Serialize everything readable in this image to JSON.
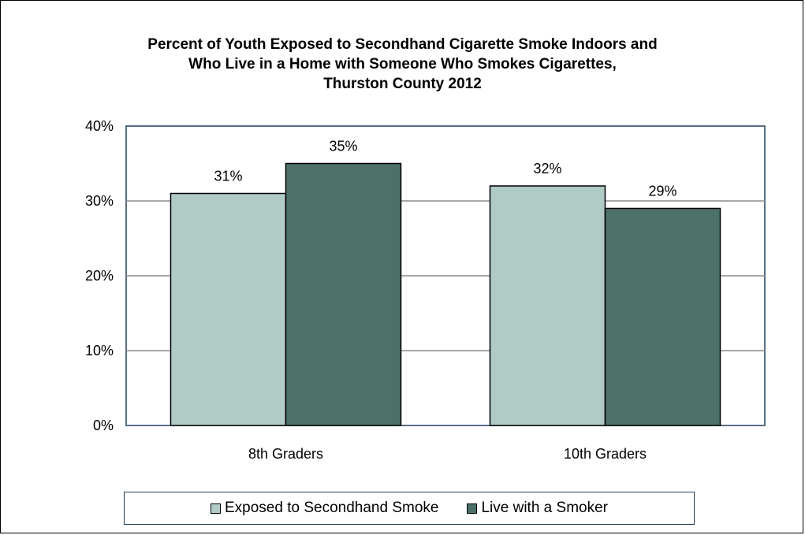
{
  "chart_data": {
    "type": "bar",
    "title_lines": [
      "Percent of Youth Exposed to Secondhand Cigarette Smoke Indoors and",
      "Who Live in a Home with Someone Who Smokes Cigarettes,",
      "Thurston County 2012"
    ],
    "categories": [
      "8th Graders",
      "10th Graders"
    ],
    "series": [
      {
        "name": "Exposed to Secondhand Smoke",
        "values": [
          31,
          32
        ],
        "labels": [
          "31%",
          "32%"
        ],
        "color": "#b0cac6"
      },
      {
        "name": "Live with a Smoker",
        "values": [
          35,
          29
        ],
        "labels": [
          "35%",
          "29%"
        ],
        "color": "#4d7169"
      }
    ],
    "ylim": [
      0,
      40
    ],
    "yticks": [
      0,
      10,
      20,
      30,
      40
    ],
    "ytick_labels": [
      "0%",
      "10%",
      "20%",
      "30%",
      "40%"
    ],
    "grid": true,
    "legend_position": "bottom",
    "xlabel": "",
    "ylabel": ""
  }
}
